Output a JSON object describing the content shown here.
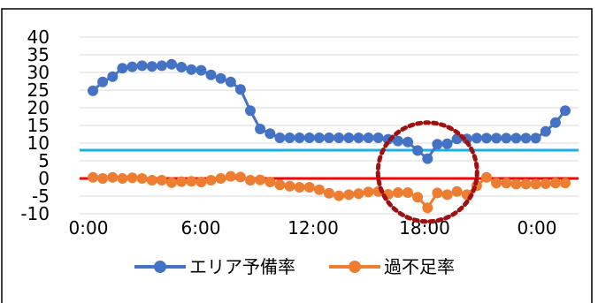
{
  "chart_data": {
    "type": "line",
    "x_ticks": [
      "0:00",
      "6:00",
      "12:00",
      "18:00",
      "0:00"
    ],
    "y_ticks": [
      "40",
      "35",
      "30",
      "25",
      "20",
      "15",
      "10",
      "5",
      "0",
      "-5",
      "-10"
    ],
    "ylim": [
      -10,
      40
    ],
    "grid": true,
    "legend_position": "bottom",
    "series": [
      {
        "name": "エリア予備率",
        "color": "#4472c4",
        "values": [
          24.8,
          27.3,
          28.8,
          31.2,
          31.6,
          31.9,
          31.7,
          31.9,
          32.3,
          31.5,
          30.8,
          30.6,
          29.3,
          28.3,
          27.3,
          25.2,
          19.2,
          14,
          12.7,
          11.5,
          11.5,
          11.5,
          11.5,
          11.5,
          11.5,
          11.5,
          11.5,
          11.5,
          11.5,
          11.5,
          11.1,
          10.6,
          10.3,
          7.9,
          5.6,
          9.7,
          9.8,
          11.2,
          11.2,
          11.4,
          11.4,
          11.4,
          11.4,
          11.4,
          11.4,
          11.4,
          13.3,
          15.8,
          19.2
        ]
      },
      {
        "name": "過不足率",
        "color": "#ed7d31",
        "values": [
          0.3,
          0,
          0.3,
          0,
          0.2,
          0,
          -0.5,
          -0.5,
          -1.2,
          -0.9,
          -0.8,
          -1,
          -0.5,
          0,
          0.6,
          0.4,
          -0.5,
          -0.4,
          -1,
          -1.8,
          -2.2,
          -2.5,
          -2.5,
          -3.2,
          -4.2,
          -4.9,
          -4.6,
          -4.3,
          -3.8,
          -3.7,
          -4.5,
          -4,
          -4,
          -5.3,
          -8.3,
          -4.1,
          -4.6,
          -3.7,
          -4.6,
          -2.1,
          0.3,
          -1.3,
          -1.3,
          -1.6,
          -1.6,
          -1.6,
          -1.5,
          -1.3,
          -1.3
        ]
      }
    ],
    "reference_lines": [
      {
        "value": 8,
        "color": "#1ab0e6"
      },
      {
        "value": 0,
        "color": "#ff0000"
      }
    ],
    "annotation": {
      "shape": "dashed-circle",
      "color": "#a01010",
      "center_x_index": 34,
      "center_y_value": 1.8
    }
  }
}
